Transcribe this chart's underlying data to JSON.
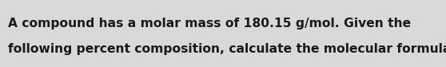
{
  "line1": "A compound has a molar mass of 180.15 g/mol. Given the",
  "line2": "following percent composition, calculate the molecular formula:",
  "background_color": "#d9d9d9",
  "text_color": "#1a1a1a",
  "font_size": 11.2,
  "fig_width": 5.58,
  "fig_height": 0.84,
  "dpi": 100
}
